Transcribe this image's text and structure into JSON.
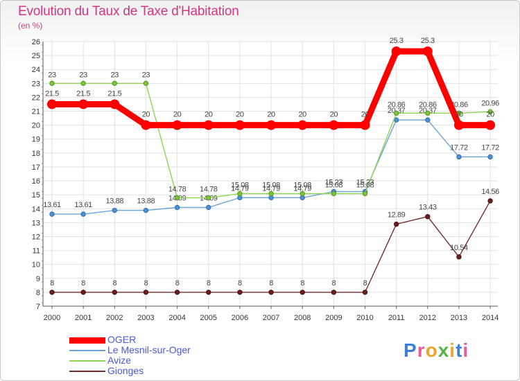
{
  "header": {
    "title": "Evolution du Taux de Taxe d'Habitation",
    "subtitle": "(en %)"
  },
  "logo": {
    "text": "Proxiti",
    "letter_colors": [
      "#3d7fd6",
      "#e85b9a",
      "#f0a32a",
      "#58b24a",
      "#f0a32a",
      "#3d7fd6",
      "#e85b9a"
    ]
  },
  "chart_data": {
    "type": "line",
    "title": "Evolution du Taux de Taxe d'Habitation",
    "ylabel": "(en %)",
    "x": [
      "2000",
      "2001",
      "2002",
      "2003",
      "2004",
      "2005",
      "2006",
      "2007",
      "2008",
      "2009",
      "2010",
      "2011",
      "2012",
      "2013",
      "2014"
    ],
    "ylim": [
      7,
      26
    ],
    "yticks": [
      7,
      8,
      9,
      10,
      11,
      12,
      13,
      14,
      15,
      16,
      17,
      18,
      19,
      20,
      21,
      22,
      23,
      24,
      25,
      26
    ],
    "grid": true,
    "legend_position": "bottom-left",
    "series": [
      {
        "name": "OGER",
        "color": "#ff0000",
        "values": [
          21.5,
          21.5,
          21.5,
          20,
          20,
          20,
          20,
          20,
          20,
          20,
          20,
          25.3,
          25.3,
          20,
          20
        ],
        "labels": [
          "21.5",
          "21.5",
          "21.5",
          "20",
          "20",
          "20",
          "20",
          "20",
          "20",
          "20",
          "20",
          "25.3",
          "25.3",
          "20",
          "20"
        ]
      },
      {
        "name": "Le Mesnil-sur-Oger",
        "color": "#5b9bd5",
        "values": [
          13.61,
          13.61,
          13.88,
          13.88,
          14.09,
          14.09,
          14.79,
          14.79,
          14.79,
          15.23,
          15.23,
          20.37,
          20.37,
          17.72,
          17.72
        ],
        "labels": [
          "13.61",
          "13.61",
          "13.88",
          "13.88",
          "14.09",
          "14.09",
          "14.79",
          "14.79",
          "14.79",
          "15.23",
          "15.23",
          "20.37",
          "20.37",
          "17.72",
          "17.72"
        ]
      },
      {
        "name": "Avize",
        "color": "#8fd44f",
        "values": [
          23,
          23,
          23,
          23,
          14.78,
          14.78,
          15.08,
          15.08,
          15.08,
          15.08,
          15.08,
          20.86,
          20.86,
          20.86,
          20.96
        ],
        "labels": [
          "23",
          "23",
          "23",
          "23",
          "14.78",
          "14.78",
          "15.08",
          "15.08",
          "15.08",
          "15.08",
          "15.08",
          "20.86",
          "20.86",
          "20.86",
          "20.96"
        ]
      },
      {
        "name": "Gionges",
        "color": "#7a2a2a",
        "values": [
          8,
          8,
          8,
          8,
          8,
          8,
          8,
          8,
          8,
          8,
          8,
          12.89,
          13.43,
          10.54,
          14.56
        ],
        "labels": [
          "8",
          "8",
          "8",
          "8",
          "8",
          "8",
          "8",
          "8",
          "8",
          "8",
          "8",
          "12.89",
          "13.43",
          "10.54",
          "14.56"
        ]
      }
    ]
  }
}
